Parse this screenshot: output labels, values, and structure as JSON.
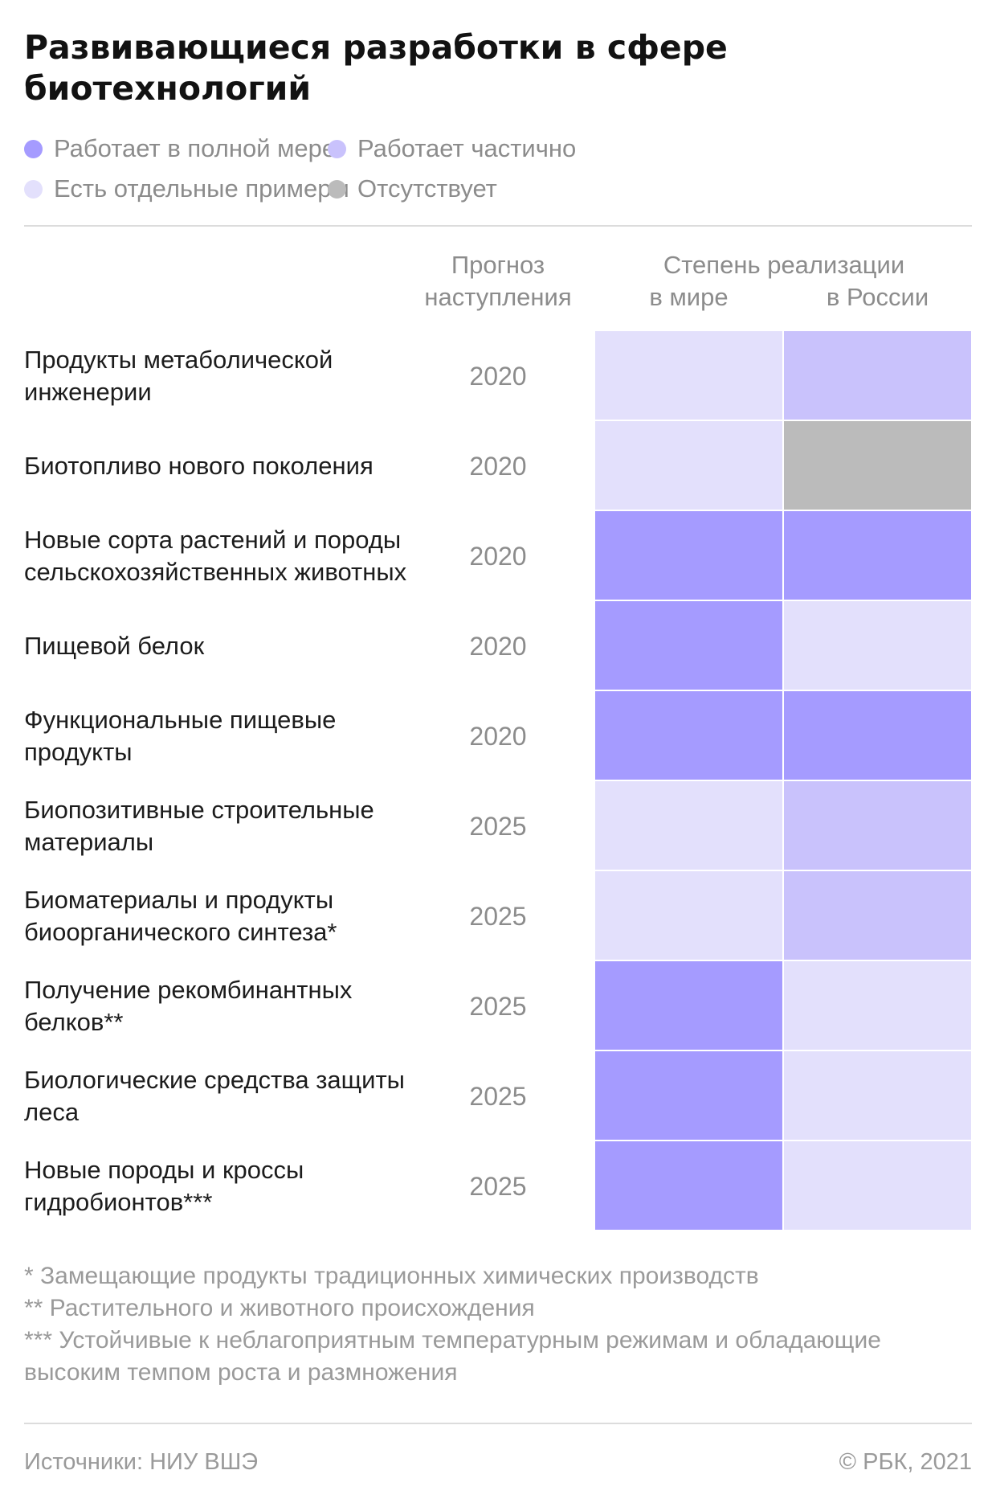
{
  "title": "Развивающиеся разработки в сфере биотехнологий",
  "legend": [
    {
      "label": "Работает в полной мере",
      "color": "#a59bff"
    },
    {
      "label": "Работает частично",
      "color": "#c9c2fc"
    },
    {
      "label": "Есть отдельные примеры",
      "color": "#e3e0fc"
    },
    {
      "label": "Отсутствует",
      "color": "#bbbbbb"
    }
  ],
  "columns": {
    "forecast_line1": "Прогноз",
    "forecast_line2": "наступления",
    "realization": "Степень реализации",
    "world": "в мире",
    "russia": "в России"
  },
  "chart_data": {
    "type": "table",
    "title": "Развивающиеся разработки в сфере биотехнологий",
    "levels": {
      "full": "Работает в полной мере",
      "partial": "Работает частично",
      "examples": "Есть отдельные примеры",
      "absent": "Отсутствует"
    },
    "colors": {
      "full": "#a59bff",
      "partial": "#c9c2fc",
      "examples": "#e3e0fc",
      "absent": "#bbbbbb"
    },
    "rows": [
      {
        "name": "Продукты метаболической инженерии",
        "year": "2020",
        "world": "examples",
        "russia": "partial"
      },
      {
        "name": "Биотопливо нового поколения",
        "year": "2020",
        "world": "examples",
        "russia": "absent"
      },
      {
        "name": "Новые сорта растений и породы сельскохозяйственных животных",
        "year": "2020",
        "world": "full",
        "russia": "full"
      },
      {
        "name": "Пищевой белок",
        "year": "2020",
        "world": "full",
        "russia": "examples"
      },
      {
        "name": "Функциональные пищевые продукты",
        "year": "2020",
        "world": "full",
        "russia": "full"
      },
      {
        "name": "Биопозитивные строительные материалы",
        "year": "2025",
        "world": "examples",
        "russia": "partial"
      },
      {
        "name": "Биоматериалы и продукты биоорганического синтеза*",
        "year": "2025",
        "world": "examples",
        "russia": "partial"
      },
      {
        "name": "Получение рекомбинантных белков**",
        "year": "2025",
        "world": "full",
        "russia": "examples"
      },
      {
        "name": "Биологические средства защиты леса",
        "year": "2025",
        "world": "full",
        "russia": "examples"
      },
      {
        "name": "Новые породы и кроссы гидробионтов***",
        "year": "2025",
        "world": "full",
        "russia": "examples"
      }
    ]
  },
  "footnotes": [
    "* Замещающие продукты традиционных химических производств",
    "** Растительного и животного происхождения",
    "*** Устойчивые к неблагоприятным температурным режимам и обладающие высоким темпом роста и размножения"
  ],
  "footer": {
    "source": "Источники: НИУ ВШЭ",
    "copyright": "© РБК, 2021"
  }
}
